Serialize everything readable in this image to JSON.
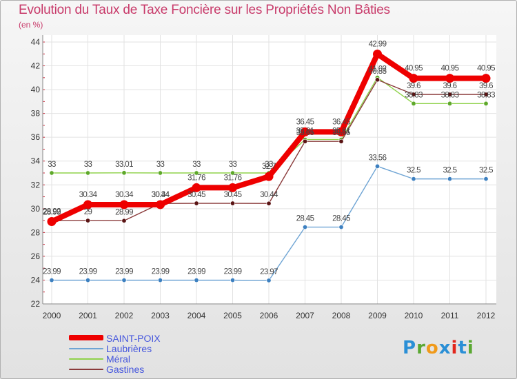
{
  "header": {
    "title": "Evolution du Taux de Taxe Foncière sur les Propriétés Non Bâties",
    "subtitle": "(en %)"
  },
  "logo": {
    "letters": [
      "P",
      "r",
      "o",
      "x",
      "i",
      "t",
      "i"
    ],
    "colors": [
      "#2a8fd6",
      "#5aa832",
      "#f09a1a",
      "#2a8fd6",
      "#e2261c",
      "#2a8fd6",
      "#5aa832"
    ]
  },
  "chart_data": {
    "type": "line",
    "title": "Evolution du Taux de Taxe Foncière sur les Propriétés Non Bâties",
    "ylabel": "(en %)",
    "xlabel": "",
    "ylim": [
      22,
      44
    ],
    "yticks": [
      22,
      24,
      26,
      28,
      30,
      32,
      34,
      36,
      38,
      40,
      42,
      44
    ],
    "grid": true,
    "categories": [
      "2000",
      "2001",
      "2002",
      "2003",
      "2004",
      "2005",
      "2006",
      "2007",
      "2008",
      "2009",
      "2010",
      "2011",
      "2012"
    ],
    "series": [
      {
        "name": "Laubrières",
        "color": "#6ea4d4",
        "marker": "#3d80c0",
        "emphasis": false,
        "values": [
          23.99,
          23.99,
          23.99,
          23.99,
          23.99,
          23.99,
          23.97,
          28.45,
          28.45,
          33.56,
          32.5,
          32.5,
          32.5
        ],
        "labels": [
          "23.99",
          "23.99",
          "23.99",
          "23.99",
          "23.99",
          "23.99",
          "23.97",
          "28.45",
          "28.45",
          "33.56",
          "32.5",
          "32.5",
          "32.5"
        ]
      },
      {
        "name": "Méral",
        "color": "#8fd24a",
        "marker": "#5ea82a",
        "emphasis": false,
        "values": [
          33,
          33,
          33.01,
          33,
          33,
          33,
          33,
          35.81,
          35.81,
          41.02,
          38.83,
          38.83,
          38.83
        ],
        "labels": [
          "33",
          "33",
          "33.01",
          "33",
          "33",
          "33",
          "33",
          "35.81",
          "35.81",
          "41.02",
          "38.83",
          "38.83",
          "38.83"
        ]
      },
      {
        "name": "Gastines",
        "color": "#8a3a3a",
        "marker": "#5a1414",
        "emphasis": false,
        "values": [
          28.99,
          29,
          28.99,
          30.44,
          30.45,
          30.45,
          30.44,
          35.65,
          35.65,
          40.83,
          39.6,
          39.6,
          39.6
        ],
        "labels": [
          "28.99",
          "29",
          "28.99",
          "30.44",
          "30.45",
          "30.45",
          "30.44",
          "35.65",
          "35.65",
          "40.83",
          "39.6",
          "39.6",
          "39.6"
        ]
      },
      {
        "name": "SAINT-POIX",
        "color": "#ee0000",
        "marker": "#ee0000",
        "emphasis": true,
        "values": [
          28.92,
          30.34,
          30.34,
          30.34,
          31.76,
          31.76,
          32.7,
          36.45,
          36.45,
          42.99,
          40.95,
          40.95,
          40.95
        ],
        "labels": [
          "28.92",
          "30.34",
          "30.34",
          "30.34",
          "31.76",
          "31.76",
          "32.7",
          "36.45",
          "36.45",
          "42.99",
          "40.95",
          "40.95",
          "40.95"
        ]
      }
    ],
    "legend": [
      "SAINT-POIX",
      "Laubrières",
      "Méral",
      "Gastines"
    ],
    "legend_position": "bottom-left"
  }
}
